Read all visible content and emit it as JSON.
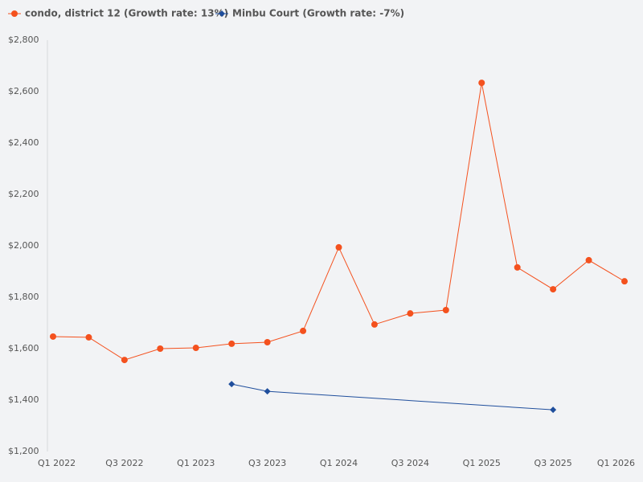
{
  "chart_data": {
    "type": "line",
    "categories": [
      "Q1 2022",
      null,
      "Q3 2022",
      null,
      "Q1 2023",
      null,
      "Q3 2023",
      null,
      "Q1 2024",
      null,
      "Q3 2024",
      null,
      "Q1 2025",
      null,
      "Q3 2025",
      null,
      "Q1 2026"
    ],
    "series": [
      {
        "name": "condo, district 12 (Growth rate: 13%)",
        "color": "#f4511e",
        "marker": "circle",
        "values": [
          1647,
          1644,
          1556,
          1600,
          1603,
          1619,
          1625,
          1669,
          1994,
          1694,
          1737,
          1750,
          2634,
          1916,
          1831,
          1944,
          1862
        ]
      },
      {
        "name": "Minbu Court (Growth rate: -7%)",
        "color": "#1f4e9c",
        "marker": "diamond",
        "values": [
          null,
          null,
          null,
          null,
          null,
          1462,
          1434,
          null,
          null,
          null,
          null,
          null,
          null,
          null,
          1362,
          null,
          null
        ]
      }
    ],
    "ylim": [
      1200,
      2800
    ],
    "yticks": [
      {
        "value": 1200,
        "label": "$1,200"
      },
      {
        "value": 1400,
        "label": "$1,400"
      },
      {
        "value": 1600,
        "label": "$1,600"
      },
      {
        "value": 1800,
        "label": "$1,800"
      },
      {
        "value": 2000,
        "label": "$2,000"
      },
      {
        "value": 2200,
        "label": "$2,200"
      },
      {
        "value": 2400,
        "label": "$2,400"
      },
      {
        "value": 2600,
        "label": "$2,600"
      },
      {
        "value": 2800,
        "label": "$2,800"
      }
    ],
    "grid": false,
    "span_gaps": true,
    "legend": "top"
  }
}
